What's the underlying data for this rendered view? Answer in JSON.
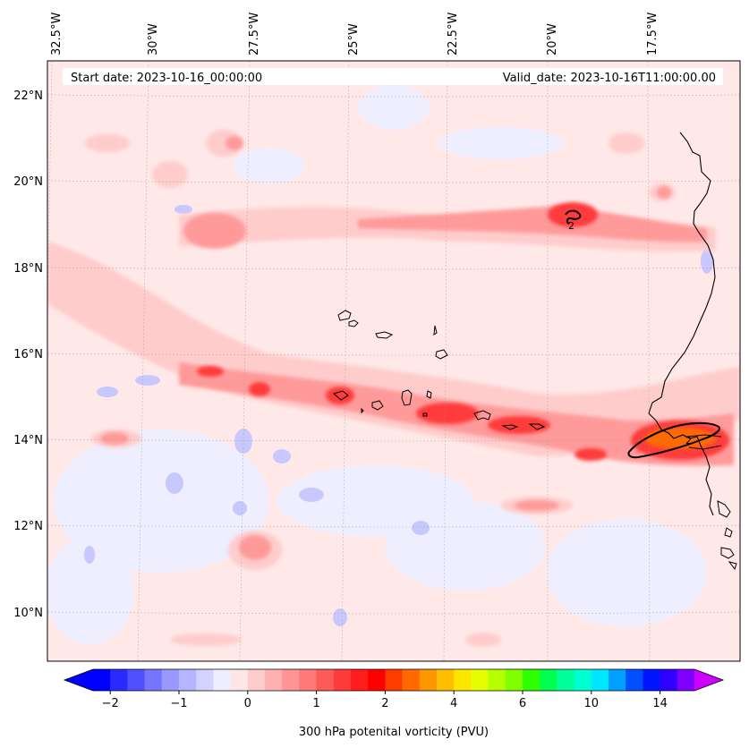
{
  "header": {
    "start_date": "Start date: 2023-10-16_00:00:00",
    "valid_date": "Valid_date: 2023-10-16T11:00:00.00"
  },
  "longitude_labels": [
    "32.5°W",
    "30°W",
    "27.5°W",
    "25°W",
    "22.5°W",
    "20°W",
    "17.5°W"
  ],
  "latitude_labels": [
    "22°N",
    "20°N",
    "18°N",
    "16°N",
    "14°N",
    "12°N",
    "10°N"
  ],
  "contour_labels": [
    "2",
    "2"
  ],
  "colorbar": {
    "label": "300 hPa potenital vorticity (PVU)",
    "ticks": [
      "−2",
      "−1",
      "0",
      "1",
      "2",
      "4",
      "6",
      "10",
      "14"
    ],
    "colors": [
      "#0000ff",
      "#2a2aff",
      "#5050ff",
      "#7575ff",
      "#9898ff",
      "#b4b4ff",
      "#d2d2ff",
      "#eeeeff",
      "#ffe6e6",
      "#ffcccc",
      "#ffb0b0",
      "#ff9494",
      "#ff7878",
      "#ff5a5a",
      "#ff3a3a",
      "#ff1e1e",
      "#ff0000",
      "#ff3c00",
      "#ff6a00",
      "#ff9600",
      "#ffbe00",
      "#ffe600",
      "#e6ff00",
      "#b4ff00",
      "#80ff00",
      "#30ff00",
      "#00ff50",
      "#00ff9a",
      "#00ffd0",
      "#00e6ff",
      "#00a0ff",
      "#0050ff",
      "#0014ff",
      "#3000ff",
      "#8000ff"
    ],
    "extend_low_color": "#0000ff",
    "extend_high_color": "#cc00ff"
  },
  "colors": {
    "background_field": "#ffe8e8",
    "negative_pv": "#c8c8ff",
    "high_pv": "#ff3030",
    "coastline": "#000000"
  }
}
